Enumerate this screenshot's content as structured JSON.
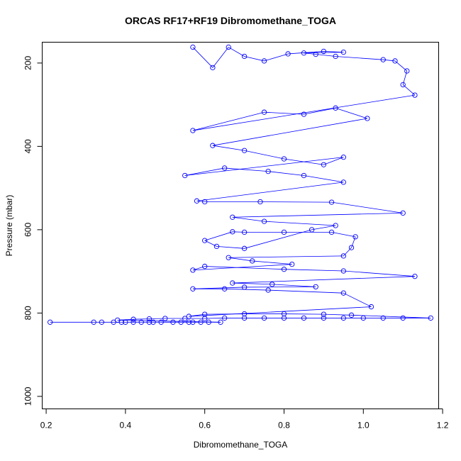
{
  "chart_data": {
    "type": "line",
    "title": "ORCAS RF17+RF19 Dibromomethane_TOGA",
    "xlabel": "Dibromomethane_TOGA",
    "ylabel": "Pressure (mbar)",
    "xlim": [
      0.19,
      1.19
    ],
    "ylim": [
      1030,
      150
    ],
    "y_reversed": true,
    "grid": false,
    "series_color": "#0000ff",
    "x_ticks": [
      0.2,
      0.4,
      0.6,
      0.8,
      1.0,
      1.2
    ],
    "x_tick_labels": [
      "0.2",
      "0.4",
      "0.6",
      "0.8",
      "1.0",
      "1.2"
    ],
    "y_ticks": [
      200,
      400,
      600,
      800,
      1000
    ],
    "y_tick_labels": [
      "200",
      "400",
      "600",
      "800",
      "1000"
    ],
    "series": [
      {
        "values": [
          [
            0.21,
            822
          ],
          [
            0.32,
            822
          ],
          [
            0.34,
            822
          ],
          [
            0.37,
            822
          ],
          [
            0.39,
            822
          ],
          [
            0.4,
            822
          ],
          [
            0.42,
            822
          ],
          [
            0.44,
            822
          ],
          [
            0.46,
            822
          ],
          [
            0.47,
            822
          ],
          [
            0.49,
            822
          ],
          [
            0.52,
            822
          ],
          [
            0.54,
            822
          ],
          [
            0.56,
            822
          ],
          [
            0.57,
            822
          ],
          [
            0.59,
            822
          ],
          [
            0.61,
            822
          ],
          [
            0.64,
            822
          ],
          [
            0.38,
            817
          ],
          [
            0.42,
            815
          ],
          [
            0.46,
            814
          ],
          [
            0.5,
            813
          ],
          [
            0.55,
            813
          ],
          [
            0.6,
            813
          ],
          [
            0.65,
            812
          ],
          [
            0.7,
            812
          ],
          [
            0.75,
            812
          ],
          [
            0.8,
            812
          ],
          [
            0.85,
            812
          ],
          [
            0.9,
            812
          ],
          [
            0.95,
            812
          ],
          [
            1.0,
            812
          ],
          [
            1.05,
            812
          ],
          [
            1.1,
            812
          ],
          [
            1.17,
            812
          ],
          [
            0.97,
            805
          ],
          [
            0.9,
            803
          ],
          [
            0.8,
            802
          ],
          [
            0.7,
            802
          ],
          [
            0.6,
            803
          ],
          [
            0.56,
            808
          ],
          [
            1.02,
            785
          ],
          [
            0.95,
            752
          ],
          [
            0.76,
            745
          ],
          [
            0.65,
            742
          ],
          [
            0.57,
            742
          ],
          [
            0.7,
            738
          ],
          [
            0.88,
            737
          ],
          [
            0.77,
            731
          ],
          [
            0.67,
            728
          ],
          [
            1.13,
            712
          ],
          [
            0.95,
            699
          ],
          [
            0.8,
            695
          ],
          [
            0.6,
            688
          ],
          [
            0.57,
            697
          ],
          [
            0.82,
            683
          ],
          [
            0.72,
            675
          ],
          [
            0.66,
            667
          ],
          [
            0.95,
            663
          ],
          [
            0.97,
            643
          ],
          [
            0.98,
            617
          ],
          [
            0.92,
            606
          ],
          [
            0.8,
            606
          ],
          [
            0.7,
            606
          ],
          [
            0.67,
            605
          ],
          [
            0.6,
            626
          ],
          [
            0.63,
            640
          ],
          [
            0.7,
            645
          ],
          [
            0.87,
            600
          ],
          [
            0.93,
            590
          ],
          [
            0.75,
            580
          ],
          [
            0.67,
            570
          ],
          [
            1.1,
            560
          ],
          [
            0.92,
            534
          ],
          [
            0.74,
            533
          ],
          [
            0.6,
            533
          ],
          [
            0.58,
            531
          ],
          [
            0.95,
            486
          ],
          [
            0.85,
            470
          ],
          [
            0.76,
            460
          ],
          [
            0.65,
            452
          ],
          [
            0.55,
            470
          ],
          [
            0.95,
            426
          ],
          [
            0.9,
            444
          ],
          [
            0.8,
            430
          ],
          [
            0.7,
            410
          ],
          [
            0.62,
            398
          ],
          [
            1.01,
            333
          ],
          [
            0.93,
            308
          ],
          [
            0.85,
            323
          ],
          [
            0.75,
            318
          ],
          [
            0.57,
            362
          ],
          [
            1.13,
            277
          ],
          [
            1.1,
            252
          ],
          [
            1.11,
            219
          ],
          [
            1.08,
            195
          ],
          [
            1.05,
            192
          ],
          [
            0.93,
            184
          ],
          [
            0.88,
            179
          ],
          [
            0.85,
            176
          ],
          [
            0.95,
            174
          ],
          [
            0.9,
            172
          ],
          [
            0.81,
            178
          ],
          [
            0.75,
            195
          ],
          [
            0.7,
            184
          ],
          [
            0.66,
            162
          ],
          [
            0.62,
            211
          ],
          [
            0.57,
            162
          ]
        ]
      }
    ]
  }
}
